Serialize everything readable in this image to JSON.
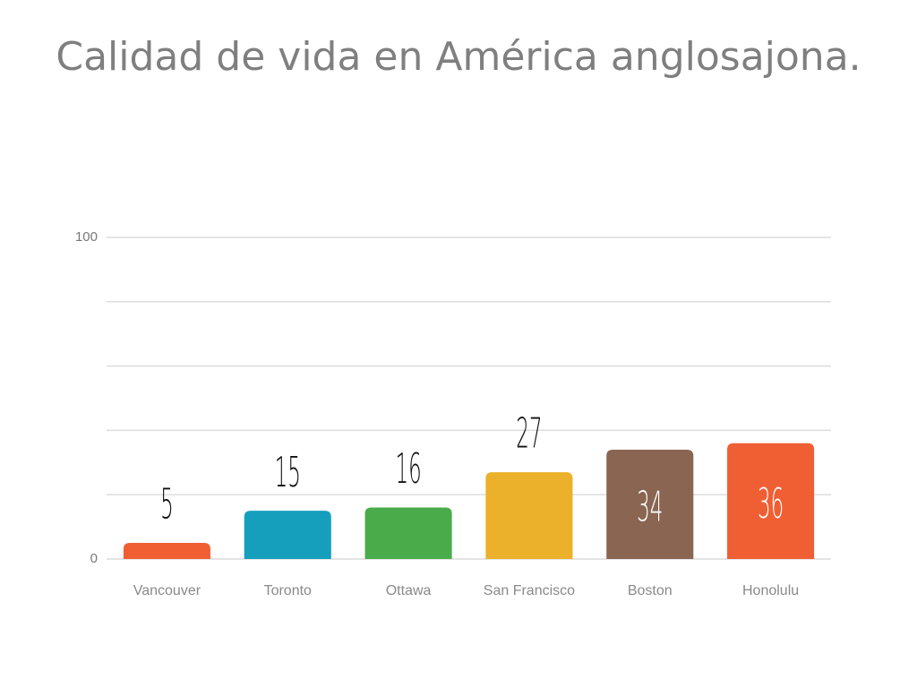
{
  "chart_data": {
    "type": "bar",
    "title": "Calidad de vida en América anglosajona.",
    "categories": [
      "Vancouver",
      "Toronto",
      "Ottawa",
      "San Francisco",
      "Boston",
      "Honolulu"
    ],
    "values": [
      5,
      15,
      16,
      27,
      34,
      36
    ],
    "colors": [
      "#f05f33",
      "#159fbc",
      "#4aab4a",
      "#ebb12a",
      "#8a6652",
      "#f05f33"
    ],
    "value_label_position": [
      "above",
      "above",
      "above",
      "above",
      "inside",
      "inside"
    ],
    "ylim": [
      0,
      100
    ],
    "yticks": [
      0,
      100
    ],
    "ygrid": [
      0,
      20,
      40,
      60,
      80,
      100
    ],
    "grid": true
  }
}
